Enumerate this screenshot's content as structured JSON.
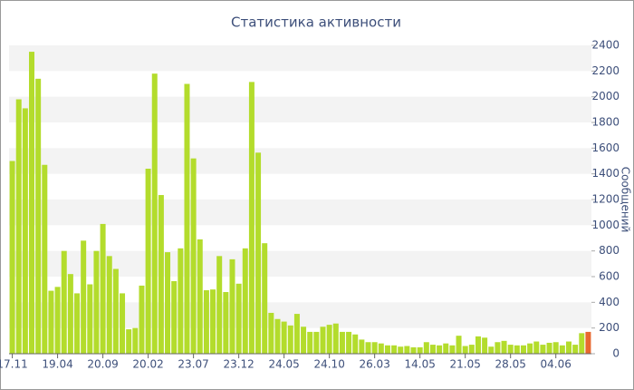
{
  "chart_data": {
    "type": "bar",
    "title": "Статистика активности",
    "y_label": "Сообщений",
    "categories": [
      "17.11",
      null,
      null,
      null,
      null,
      null,
      null,
      "19.04",
      null,
      null,
      null,
      null,
      null,
      null,
      "20.09",
      null,
      null,
      null,
      null,
      null,
      null,
      "20.02",
      null,
      null,
      null,
      null,
      null,
      null,
      "23.07",
      null,
      null,
      null,
      null,
      null,
      null,
      "23.12",
      null,
      null,
      null,
      null,
      null,
      null,
      "24.05",
      null,
      null,
      null,
      null,
      null,
      null,
      "24.10",
      null,
      null,
      null,
      null,
      null,
      null,
      "26.03",
      null,
      null,
      null,
      null,
      null,
      null,
      "14.05",
      null,
      null,
      null,
      null,
      null,
      null,
      "21.05",
      null,
      null,
      null,
      null,
      null,
      null,
      "28.05",
      null,
      null,
      null,
      null,
      null,
      null,
      "04.06",
      null,
      null,
      null,
      null,
      null
    ],
    "values": [
      1500,
      1980,
      1910,
      2350,
      2140,
      1470,
      490,
      520,
      800,
      620,
      470,
      880,
      540,
      800,
      1010,
      760,
      660,
      470,
      190,
      200,
      530,
      1440,
      2180,
      1235,
      790,
      565,
      820,
      2100,
      1520,
      890,
      494,
      500,
      760,
      480,
      735,
      545,
      820,
      2115,
      1565,
      860,
      318,
      270,
      250,
      220,
      310,
      210,
      170,
      170,
      210,
      225,
      235,
      170,
      170,
      150,
      110,
      90,
      90,
      80,
      65,
      65,
      55,
      60,
      50,
      50,
      90,
      70,
      65,
      80,
      65,
      140,
      60,
      70,
      135,
      125,
      55,
      90,
      100,
      70,
      65,
      65,
      80,
      95,
      70,
      85,
      90,
      65,
      95,
      70,
      160,
      170
    ],
    "colors": [
      "#b3dc2c",
      "#b3dc2c",
      "#b3dc2c",
      "#b3dc2c",
      "#b3dc2c",
      "#b3dc2c",
      "#b3dc2c",
      "#b3dc2c",
      "#b3dc2c",
      "#b3dc2c",
      "#b3dc2c",
      "#b3dc2c",
      "#b3dc2c",
      "#b3dc2c",
      "#b3dc2c",
      "#b3dc2c",
      "#b3dc2c",
      "#b3dc2c",
      "#b3dc2c",
      "#b3dc2c",
      "#b3dc2c",
      "#b3dc2c",
      "#b3dc2c",
      "#b3dc2c",
      "#b3dc2c",
      "#b3dc2c",
      "#b3dc2c",
      "#b3dc2c",
      "#b3dc2c",
      "#b3dc2c",
      "#b3dc2c",
      "#b3dc2c",
      "#b3dc2c",
      "#b3dc2c",
      "#b3dc2c",
      "#b3dc2c",
      "#b3dc2c",
      "#b3dc2c",
      "#b3dc2c",
      "#b3dc2c",
      "#b3dc2c",
      "#b3dc2c",
      "#b3dc2c",
      "#b3dc2c",
      "#b3dc2c",
      "#b3dc2c",
      "#b3dc2c",
      "#b3dc2c",
      "#b3dc2c",
      "#b3dc2c",
      "#b3dc2c",
      "#b3dc2c",
      "#b3dc2c",
      "#b3dc2c",
      "#b3dc2c",
      "#b3dc2c",
      "#b3dc2c",
      "#b3dc2c",
      "#b3dc2c",
      "#b3dc2c",
      "#b3dc2c",
      "#b3dc2c",
      "#b3dc2c",
      "#b3dc2c",
      "#b3dc2c",
      "#b3dc2c",
      "#b3dc2c",
      "#b3dc2c",
      "#b3dc2c",
      "#b3dc2c",
      "#b3dc2c",
      "#b3dc2c",
      "#b3dc2c",
      "#b3dc2c",
      "#b3dc2c",
      "#b3dc2c",
      "#b3dc2c",
      "#b3dc2c",
      "#b3dc2c",
      "#b3dc2c",
      "#b3dc2c",
      "#b3dc2c",
      "#b3dc2c",
      "#b3dc2c",
      "#b3dc2c",
      "#b3dc2c",
      "#b3dc2c",
      "#b3dc2c",
      "#b3dc2c",
      "#e8682f"
    ],
    "ylim": [
      0,
      2400
    ],
    "yticks": [
      0,
      200,
      400,
      600,
      800,
      1000,
      1200,
      1400,
      1600,
      1800,
      2000,
      2200,
      2400
    ],
    "grid": "bands"
  }
}
